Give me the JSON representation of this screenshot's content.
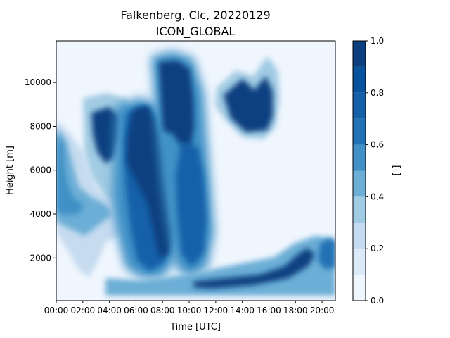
{
  "chart_data": {
    "type": "heatmap",
    "title": "Falkenberg, Clc, 20220129",
    "subtitle": "ICON_GLOBAL",
    "xlabel": "Time [UTC]",
    "ylabel": "Height [m]",
    "colorbar_label": "[-]",
    "x_tick_labels": [
      "00:00",
      "02:00",
      "04:00",
      "06:00",
      "08:00",
      "10:00",
      "12:00",
      "14:00",
      "16:00",
      "18:00",
      "20:00"
    ],
    "x_ticks_hours": [
      0,
      2,
      4,
      6,
      8,
      10,
      12,
      14,
      16,
      18,
      20
    ],
    "xlim_hours": [
      0,
      21
    ],
    "y_tick_labels": [
      "2000",
      "4000",
      "6000",
      "8000",
      "10000"
    ],
    "y_ticks": [
      2000,
      4000,
      6000,
      8000,
      10000
    ],
    "ylim": [
      50,
      11900
    ],
    "colorbar": {
      "range": [
        0.0,
        1.0
      ],
      "tick_labels": [
        "0.0",
        "0.2",
        "0.4",
        "0.6",
        "0.8",
        "1.0"
      ],
      "ticks": [
        0.0,
        0.2,
        0.4,
        0.6,
        0.8,
        1.0
      ],
      "levels": [
        0.0,
        0.1,
        0.2,
        0.3,
        0.4,
        0.5,
        0.6,
        0.7,
        0.8,
        0.9,
        1.0
      ],
      "colors": [
        "#f0f6fe",
        "#dce9f7",
        "#c6dbef",
        "#a1cbe3",
        "#6caed6",
        "#4191c6",
        "#2171b5",
        "#1561a9",
        "#08519c",
        "#0b3f80"
      ]
    },
    "cloud_regions": [
      {
        "hours": [
          0,
          3
        ],
        "heights": [
          3000,
          8000
        ],
        "value": 0.5
      },
      {
        "hours": [
          2.3,
          4.5
        ],
        "heights": [
          6000,
          8500
        ],
        "value": 0.95
      },
      {
        "hours": [
          5,
          7
        ],
        "heights": [
          3000,
          8800
        ],
        "value": 0.95
      },
      {
        "hours": [
          7,
          9
        ],
        "heights": [
          2000,
          10800
        ],
        "value": 0.95
      },
      {
        "hours": [
          8,
          10.5
        ],
        "heights": [
          1500,
          10500
        ],
        "value": 0.95
      },
      {
        "hours": [
          12.5,
          16
        ],
        "heights": [
          7800,
          10300
        ],
        "value": 0.95
      },
      {
        "hours": [
          11,
          19
        ],
        "heights": [
          400,
          2200
        ],
        "value": 0.95
      },
      {
        "hours": [
          19,
          21
        ],
        "heights": [
          1000,
          2600
        ],
        "value": 0.55
      },
      {
        "hours": [
          5,
          9
        ],
        "heights": [
          200,
          1500
        ],
        "value": 0.6
      }
    ]
  }
}
